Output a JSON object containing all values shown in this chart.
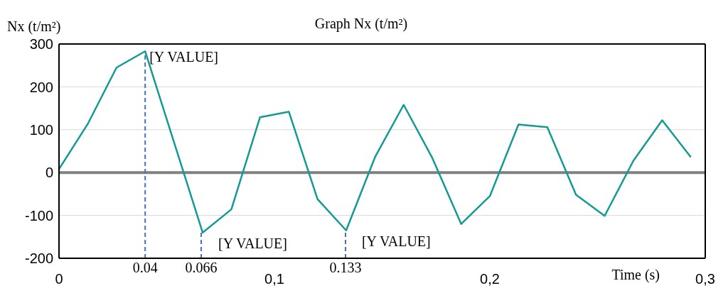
{
  "chart_data": {
    "type": "line",
    "title": "Graph Nx (t/m²)",
    "ylabel": "Nx (t/m²)",
    "xlabel": "Time (s)",
    "x": [
      0,
      0.0133,
      0.0267,
      0.04,
      0.0667,
      0.08,
      0.0933,
      0.1067,
      0.12,
      0.1333,
      0.1467,
      0.16,
      0.1733,
      0.1867,
      0.2,
      0.2133,
      0.2267,
      0.24,
      0.2533,
      0.2667,
      0.28,
      0.2933
    ],
    "series": [
      {
        "color": "#139a93",
        "values": [
          8,
          113,
          245,
          283,
          -140,
          -86,
          129,
          142,
          -62,
          -135,
          36,
          158,
          34,
          -120,
          -55,
          112,
          106,
          -52,
          -101,
          28,
          122,
          36
        ]
      }
    ],
    "xlim": [
      0,
      0.3
    ],
    "xticks": [
      0,
      {
        "value": 0.1,
        "label": "0,1"
      },
      {
        "value": 0.2,
        "label": "0,2"
      },
      {
        "value": 0.3,
        "label": "0,3"
      }
    ],
    "ylim": [
      -200,
      300
    ],
    "yticks": [
      -200,
      -100,
      0,
      100,
      200,
      300
    ],
    "grid": "y",
    "marker": "none",
    "line_style": "solid",
    "legend": false,
    "ref_lines": [
      {
        "axis": "y",
        "value": 0,
        "color": "#808080",
        "line_style": "solid"
      },
      {
        "axis": "x",
        "value": 0.04,
        "label": "0.04",
        "color": "#4472c4",
        "line_style": "dashed"
      },
      {
        "axis": "x",
        "value": 0.066,
        "label": "0.066",
        "color": "#4472c4",
        "line_style": "dashed"
      },
      {
        "axis": "x",
        "value": 0.133,
        "label": "0.133",
        "color": "#4472c4",
        "line_style": "dashed"
      }
    ],
    "annotations": [
      {
        "text": "[Y VALUE]",
        "x": 0.04,
        "y": 283
      },
      {
        "text": "[Y VALUE]",
        "x": 0.0667,
        "y": -140
      },
      {
        "text": "[Y VALUE]",
        "x": 0.1333,
        "y": -135
      }
    ]
  }
}
